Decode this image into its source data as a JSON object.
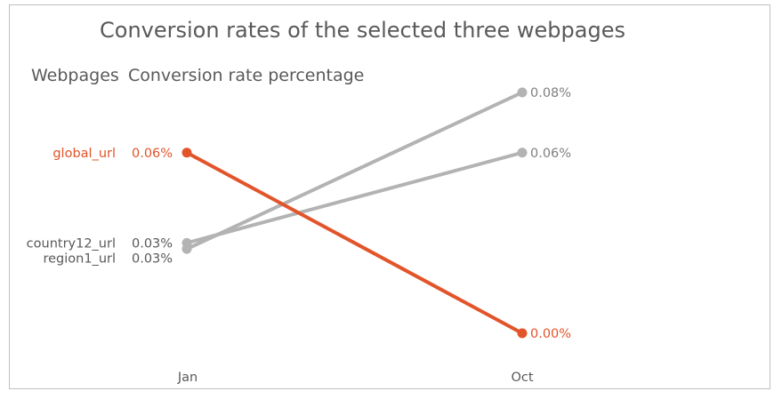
{
  "chart_data": {
    "type": "line",
    "title": "Conversion rates of the selected three webpages",
    "header_left": "Webpages",
    "header_right": "Conversion rate percentage",
    "categories": [
      "Jan",
      "Oct"
    ],
    "ylim": [
      0.0,
      0.08
    ],
    "series": [
      {
        "name": "global_url",
        "values": [
          0.06,
          0.0
        ],
        "labels": [
          "0.06%",
          "0.00%"
        ],
        "color": "#e2542a",
        "highlight": true
      },
      {
        "name": "country12_url",
        "values": [
          0.03,
          0.06
        ],
        "labels": [
          "0.03%",
          "0.06%"
        ],
        "color": "#b3b3b3",
        "highlight": false
      },
      {
        "name": "region1_url",
        "values": [
          0.028,
          0.08
        ],
        "labels": [
          "0.03%",
          "0.08%"
        ],
        "color": "#b3b3b3",
        "highlight": false
      }
    ]
  }
}
